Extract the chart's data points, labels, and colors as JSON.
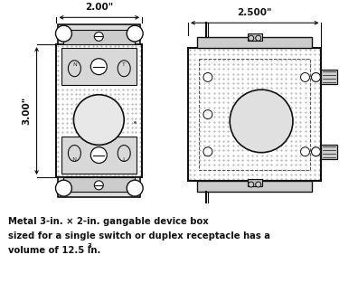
{
  "caption_line1": "Metal 3-in. × 2-in. gangable device box",
  "caption_line2": "sized for a single switch or duplex receptacle has a",
  "caption_line3": "volume of 12.5 In.",
  "caption_superscript": "3",
  "bg_color": "#ffffff",
  "dim_color": "#111111",
  "box_edge": "#111111",
  "left_box_label_width": "2.00\"",
  "left_box_label_height": "3.00\"",
  "right_box_label_width": "2.500\""
}
